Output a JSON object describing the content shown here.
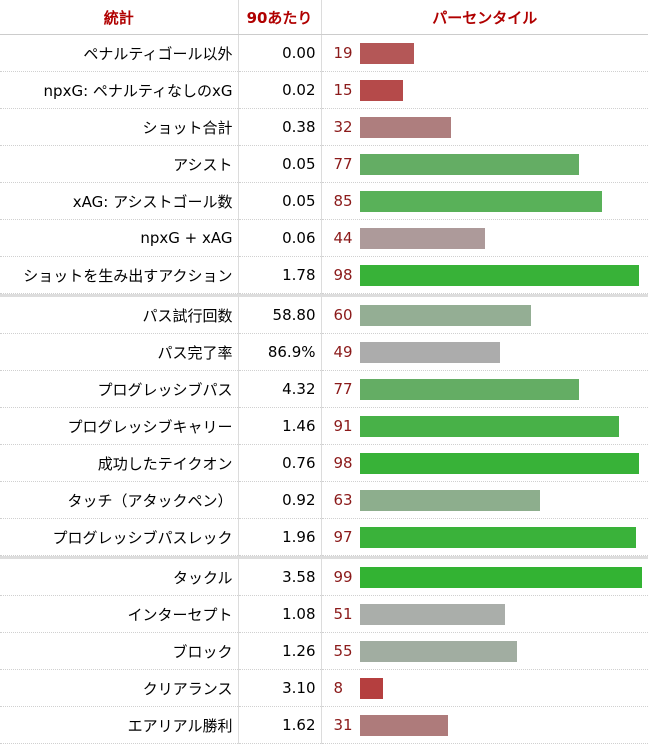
{
  "header": {
    "stat": "統計",
    "per90": "90あたり",
    "percentile": "パーセンタイル"
  },
  "groups": [
    [
      {
        "stat": "ペナルティゴール以外",
        "per90": "0.00",
        "pct": 19,
        "color": "#b45757"
      },
      {
        "stat": "npxG: ペナルティなしのxG",
        "per90": "0.02",
        "pct": 15,
        "color": "#b54a4a"
      },
      {
        "stat": "ショット合計",
        "per90": "0.38",
        "pct": 32,
        "color": "#ae7e7e"
      },
      {
        "stat": "アシスト",
        "per90": "0.05",
        "pct": 77,
        "color": "#64ad64"
      },
      {
        "stat": "xAG: アシストゴール数",
        "per90": "0.05",
        "pct": 85,
        "color": "#59b159"
      },
      {
        "stat": "npxG + xAG",
        "per90": "0.06",
        "pct": 44,
        "color": "#ad9a9a"
      },
      {
        "stat": "ショットを生み出すアクション",
        "per90": "1.78",
        "pct": 98,
        "color": "#38b238"
      }
    ],
    [
      {
        "stat": "パス試行回数",
        "per90": "58.80",
        "pct": 60,
        "color": "#94ae94"
      },
      {
        "stat": "パス完了率",
        "per90": "86.9%",
        "pct": 49,
        "color": "#acacac"
      },
      {
        "stat": "プログレッシブパス",
        "per90": "4.32",
        "pct": 77,
        "color": "#64ad64"
      },
      {
        "stat": "プログレッシブキャリー",
        "per90": "1.46",
        "pct": 91,
        "color": "#48b148"
      },
      {
        "stat": "成功したテイクオン",
        "per90": "0.76",
        "pct": 98,
        "color": "#38b238"
      },
      {
        "stat": "タッチ（アタックペン）",
        "per90": "0.92",
        "pct": 63,
        "color": "#8dae8d"
      },
      {
        "stat": "プログレッシブパスレック",
        "per90": "1.96",
        "pct": 97,
        "color": "#3ab23a"
      }
    ],
    [
      {
        "stat": "タックル",
        "per90": "3.58",
        "pct": 99,
        "color": "#33b333"
      },
      {
        "stat": "インターセプト",
        "per90": "1.08",
        "pct": 51,
        "color": "#aaaeaa"
      },
      {
        "stat": "ブロック",
        "per90": "1.26",
        "pct": 55,
        "color": "#a1ada1"
      },
      {
        "stat": "クリアランス",
        "per90": "3.10",
        "pct": 8,
        "color": "#b53f3f"
      },
      {
        "stat": "エアリアル勝利",
        "per90": "1.62",
        "pct": 31,
        "color": "#ae7b7b"
      }
    ]
  ]
}
